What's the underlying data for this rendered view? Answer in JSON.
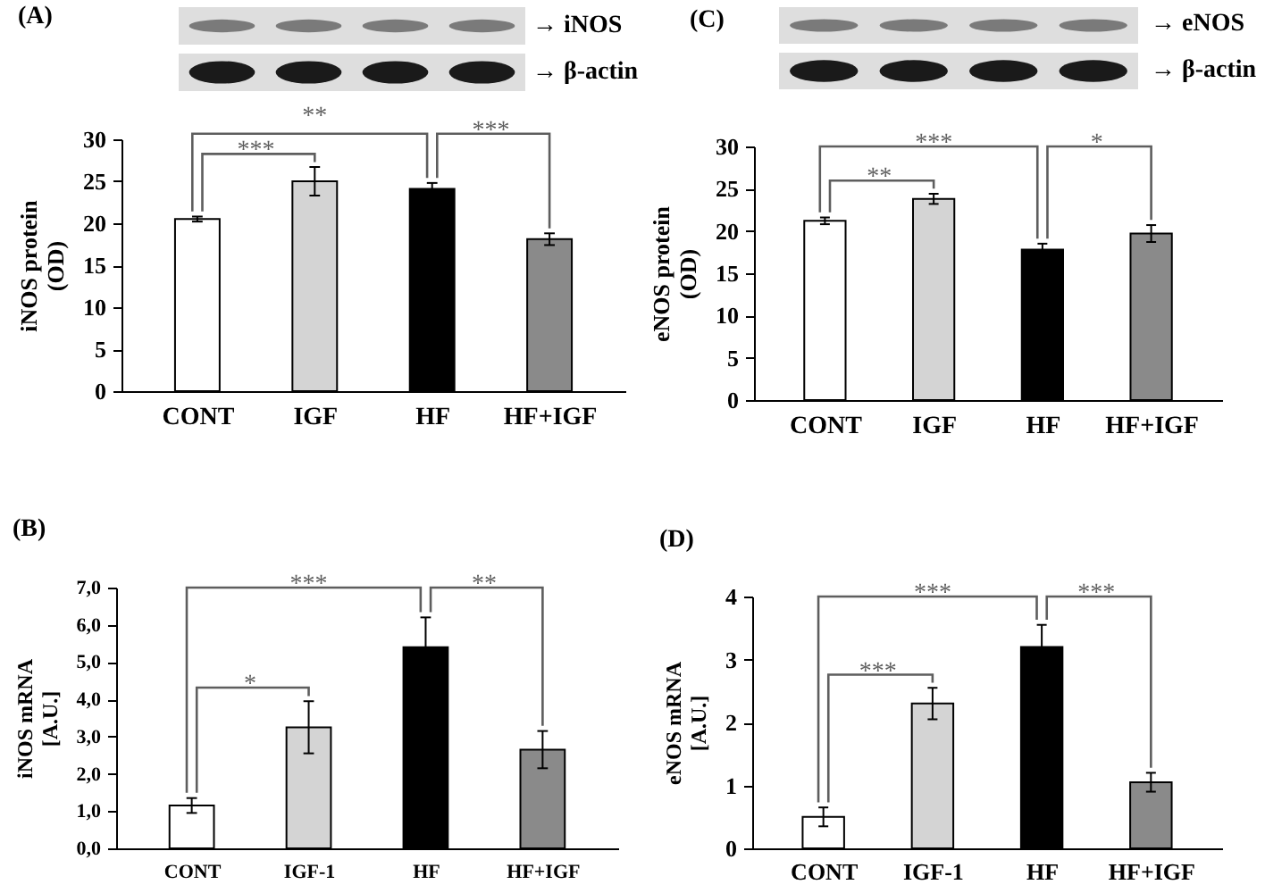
{
  "chart_data": [
    {
      "type": "bar",
      "title": "(A)",
      "ylabel": "iNOS protein\n(OD)",
      "categories": [
        "CONT",
        "IGF",
        "HF",
        "HF+IGF"
      ],
      "values": [
        20.5,
        25.0,
        24.1,
        18.1
      ],
      "errors": [
        0.3,
        1.7,
        0.7,
        0.7
      ],
      "colors": [
        "#ffffff",
        "#d4d4d4",
        "#000000",
        "#8a8a8a"
      ],
      "ylim": [
        0,
        30
      ],
      "yticks": [
        0,
        5,
        10,
        15,
        20,
        25,
        30
      ],
      "annotations": [
        "***",
        "**",
        "***",
        "→ iNOS",
        "→ β-actin"
      ]
    },
    {
      "type": "bar",
      "title": "(C)",
      "ylabel": "eNOS protein\n(OD)",
      "categories": [
        "CONT",
        "IGF",
        "HF",
        "HF+IGF"
      ],
      "values": [
        21.2,
        23.8,
        17.8,
        19.7
      ],
      "errors": [
        0.4,
        0.6,
        0.7,
        1.0
      ],
      "colors": [
        "#ffffff",
        "#d4d4d4",
        "#000000",
        "#8a8a8a"
      ],
      "ylim": [
        0,
        30
      ],
      "yticks": [
        0,
        5,
        10,
        15,
        20,
        25,
        30
      ],
      "annotations": [
        "**",
        "***",
        "*",
        "→ eNOS",
        "→ β-actin"
      ]
    },
    {
      "type": "bar",
      "title": "(B)",
      "ylabel": "iNOS mRNA\n[A.U.]",
      "categories": [
        "CONT",
        "IGF-1",
        "HF",
        "HF+IGF"
      ],
      "values": [
        1.15,
        3.25,
        5.4,
        2.65
      ],
      "errors": [
        0.2,
        0.7,
        0.8,
        0.5
      ],
      "colors": [
        "#ffffff",
        "#d4d4d4",
        "#000000",
        "#8a8a8a"
      ],
      "ylim": [
        0,
        7
      ],
      "yticks": [
        {
          "value": 0,
          "label": "0,0"
        },
        {
          "value": 1,
          "label": "1,0"
        },
        {
          "value": 2,
          "label": "2,0"
        },
        {
          "value": 3,
          "label": "3,0"
        },
        {
          "value": 4,
          "label": "4,0"
        },
        {
          "value": 5,
          "label": "5,0"
        },
        {
          "value": 6,
          "label": "6,0"
        },
        {
          "value": 7,
          "label": "7,0"
        }
      ],
      "annotations": [
        "*",
        "***",
        "**"
      ]
    },
    {
      "type": "bar",
      "title": "(D)",
      "ylabel": "eNOS mRNA\n[A.U.]",
      "categories": [
        "CONT",
        "IGF-1",
        "HF",
        "HF+IGF"
      ],
      "values": [
        0.5,
        2.3,
        3.2,
        1.05
      ],
      "errors": [
        0.15,
        0.25,
        0.35,
        0.15
      ],
      "colors": [
        "#ffffff",
        "#d4d4d4",
        "#000000",
        "#8a8a8a"
      ],
      "ylim": [
        0,
        4
      ],
      "yticks": [
        0,
        1,
        2,
        3,
        4
      ],
      "annotations": [
        "***",
        "***",
        "***"
      ]
    }
  ]
}
